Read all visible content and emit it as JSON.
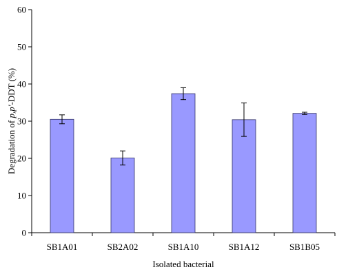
{
  "chart_data": {
    "type": "bar",
    "title": "",
    "xlabel": "Isolated bacterial",
    "ylabel_parts": [
      {
        "text": "Degradation of ",
        "italic": false
      },
      {
        "text": "p,p'",
        "italic": true
      },
      {
        "text": "-DDT (%)",
        "italic": false
      }
    ],
    "categories": [
      "SB1A01",
      "SB2A02",
      "SB1A10",
      "SB1A12",
      "SB1B05"
    ],
    "values": [
      30.5,
      20.1,
      37.4,
      30.4,
      32.1
    ],
    "errors": [
      1.2,
      1.9,
      1.6,
      4.5,
      0.3
    ],
    "ylim": [
      0,
      60
    ],
    "yticks": [
      0,
      10,
      20,
      30,
      40,
      50,
      60
    ],
    "grid": false,
    "legend": "none",
    "colors": {
      "bar_fill": "#9999ff",
      "bar_stroke": "#333366",
      "axis": "#000000"
    }
  }
}
